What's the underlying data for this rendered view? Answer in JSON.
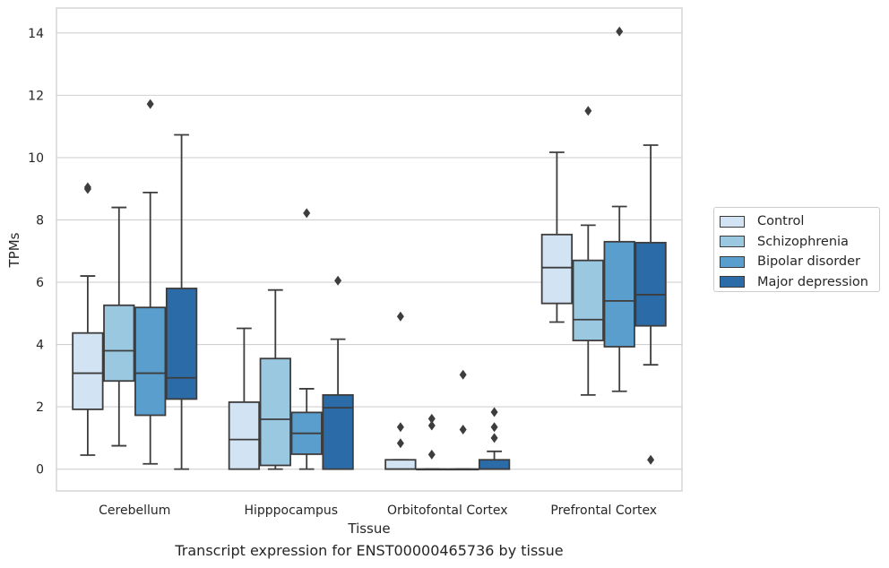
{
  "chart_data": {
    "type": "box",
    "title": "",
    "caption": "Transcript expression for ENST00000465736 by tissue",
    "xlabel": "Tissue",
    "ylabel": "TPMs",
    "ylim": [
      -0.7,
      14.8
    ],
    "yticks": [
      0,
      2,
      4,
      6,
      8,
      10,
      12,
      14
    ],
    "grid": "horizontal",
    "legend_position": "right",
    "categories": [
      "Cerebellum",
      "Hipppocampus",
      "Orbitofontal Cortex",
      "Prefrontal Cortex"
    ],
    "series": [
      {
        "name": "Control",
        "color": "#d2e3f3",
        "boxes": [
          {
            "whislo": 0.45,
            "q1": 1.92,
            "med": 3.08,
            "q3": 4.37,
            "whishi": 6.2,
            "fliers": [
              8.99,
              9.05
            ]
          },
          {
            "whislo": 0.0,
            "q1": 0.0,
            "med": 0.95,
            "q3": 2.15,
            "whishi": 4.52,
            "fliers": []
          },
          {
            "whislo": 0.0,
            "q1": 0.0,
            "med": 0.0,
            "q3": 0.3,
            "whishi": 0.3,
            "fliers": [
              0.83,
              1.35,
              4.9
            ]
          },
          {
            "whislo": 4.72,
            "q1": 5.32,
            "med": 6.47,
            "q3": 7.53,
            "whishi": 10.17,
            "fliers": []
          }
        ]
      },
      {
        "name": "Schizophrenia",
        "color": "#9ac8e0",
        "boxes": [
          {
            "whislo": 0.75,
            "q1": 2.83,
            "med": 3.8,
            "q3": 5.26,
            "whishi": 8.4,
            "fliers": []
          },
          {
            "whislo": 0.0,
            "q1": 0.12,
            "med": 1.6,
            "q3": 3.55,
            "whishi": 5.75,
            "fliers": []
          },
          {
            "whislo": 0.0,
            "q1": 0.0,
            "med": 0.0,
            "q3": 0.0,
            "whishi": 0.0,
            "fliers": [
              0.47,
              1.4,
              1.62
            ]
          },
          {
            "whislo": 2.38,
            "q1": 4.13,
            "med": 4.8,
            "q3": 6.7,
            "whishi": 7.83,
            "fliers": [
              11.5
            ]
          }
        ]
      },
      {
        "name": "Bipolar disorder",
        "color": "#5a9ecd",
        "boxes": [
          {
            "whislo": 0.17,
            "q1": 1.73,
            "med": 3.08,
            "q3": 5.19,
            "whishi": 8.88,
            "fliers": [
              11.72
            ]
          },
          {
            "whislo": 0.0,
            "q1": 0.48,
            "med": 1.15,
            "q3": 1.82,
            "whishi": 2.58,
            "fliers": [
              8.22
            ]
          },
          {
            "whislo": 0.0,
            "q1": 0.0,
            "med": 0.0,
            "q3": 0.0,
            "whishi": 0.0,
            "fliers": [
              1.27,
              3.03
            ]
          },
          {
            "whislo": 2.5,
            "q1": 3.93,
            "med": 5.4,
            "q3": 7.3,
            "whishi": 8.43,
            "fliers": [
              14.05
            ]
          }
        ]
      },
      {
        "name": "Major depression",
        "color": "#2b6ba8",
        "boxes": [
          {
            "whislo": 0.0,
            "q1": 2.25,
            "med": 2.93,
            "q3": 5.8,
            "whishi": 10.73,
            "fliers": []
          },
          {
            "whislo": 0.0,
            "q1": 0.0,
            "med": 1.97,
            "q3": 2.38,
            "whishi": 4.17,
            "fliers": [
              6.05
            ]
          },
          {
            "whislo": 0.0,
            "q1": 0.0,
            "med": 0.0,
            "q3": 0.3,
            "whishi": 0.57,
            "fliers": [
              1.0,
              1.35,
              1.83
            ]
          },
          {
            "whislo": 3.35,
            "q1": 4.6,
            "med": 5.6,
            "q3": 7.27,
            "whishi": 10.4,
            "fliers": [
              0.3
            ]
          }
        ]
      }
    ]
  }
}
